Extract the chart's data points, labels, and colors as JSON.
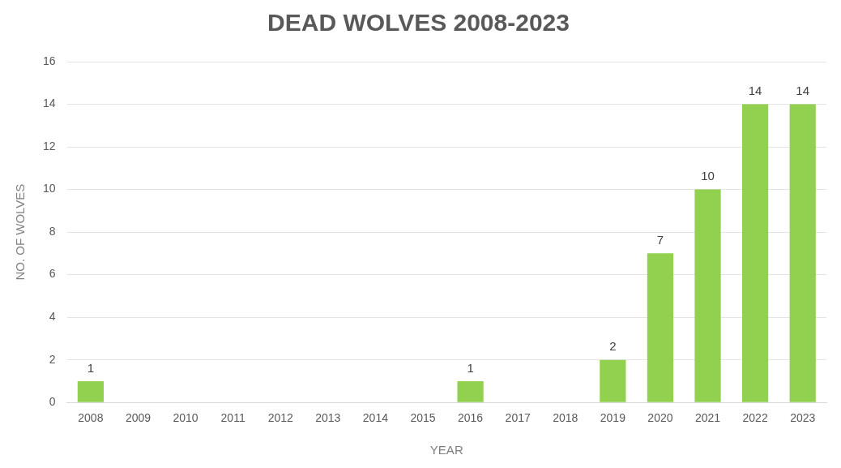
{
  "chart_data": {
    "type": "bar",
    "title": "DEAD WOLVES 2008-2023",
    "xlabel": "YEAR",
    "ylabel": "NO. OF WOLVES",
    "categories": [
      "2008",
      "2009",
      "2010",
      "2011",
      "2012",
      "2013",
      "2014",
      "2015",
      "2016",
      "2017",
      "2018",
      "2019",
      "2020",
      "2021",
      "2022",
      "2023"
    ],
    "values": [
      1,
      0,
      0,
      0,
      0,
      0,
      0,
      0,
      1,
      0,
      0,
      2,
      7,
      10,
      14,
      14
    ],
    "value_labels": [
      "1",
      null,
      null,
      null,
      null,
      null,
      null,
      null,
      "1",
      null,
      null,
      "2",
      "7",
      "10",
      "14",
      "14"
    ],
    "color": "#92d050",
    "ylim": [
      0,
      16
    ],
    "yticks": [
      0,
      2,
      4,
      6,
      8,
      10,
      12,
      14,
      16
    ],
    "grid": "y",
    "legend": false
  }
}
